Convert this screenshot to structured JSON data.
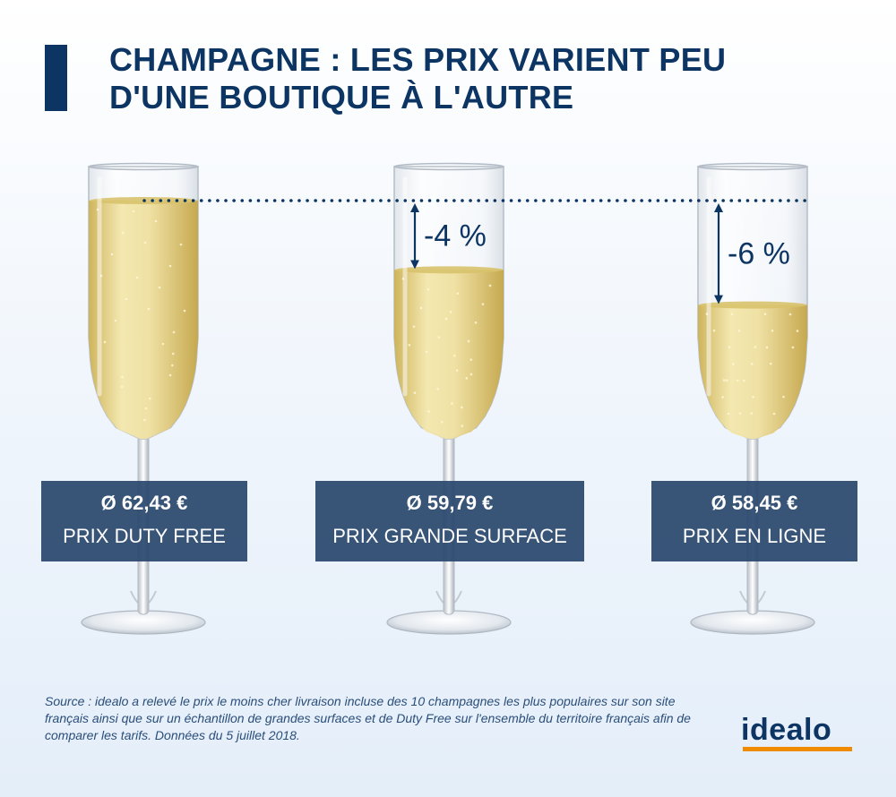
{
  "title": {
    "line1": "CHAMPAGNE : LES PRIX VARIENT PEU",
    "line2": "D'UNE BOUTIQUE À L'AUTRE"
  },
  "chart_data": {
    "type": "bar",
    "categories": [
      "PRIX DUTY FREE",
      "PRIX GRANDE SURFACE",
      "PRIX EN LIGNE"
    ],
    "values": [
      62.43,
      59.79,
      58.45
    ],
    "price_labels": [
      "Ø 62,43 €",
      "Ø 59,79 €",
      "Ø 58,45 €"
    ],
    "diff_labels": [
      "",
      "-4 %",
      "-6 %"
    ],
    "unit": "€"
  },
  "source": "Source :  idealo a relevé le prix le moins cher livraison incluse des 10 champagnes les plus populaires sur son site français ainsi que sur un échantillon de grandes surfaces et de Duty Free sur l'ensemble du territoire français afin de comparer les tarifs. Données du 5 juillet 2018.",
  "logo": "idealo",
  "colors": {
    "navy": "#0d3563",
    "label_bg": "#2a4e7a",
    "champagne": "#e9d98a",
    "accent": "#f08a00"
  }
}
